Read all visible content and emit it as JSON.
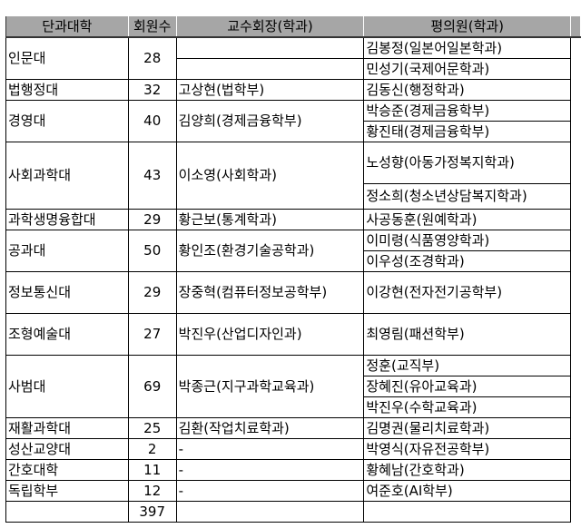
{
  "headers": [
    "단과대학",
    "회원수",
    "교수회장(학과)",
    "평의원(학과)",
    ""
  ],
  "colleges": [
    {
      "name": "인문대",
      "members": "28",
      "president": [
        "",
        ""
      ],
      "reps": [
        "김봉정(일본어일본학과)",
        "민성기(국제어문학과)"
      ]
    },
    {
      "name": "법행정대",
      "members": "32",
      "president": "고상현(법학부)",
      "reps": [
        "김동신(행정학과)"
      ]
    },
    {
      "name": "경영대",
      "members": "40",
      "president": "김양희(경제금융학부)",
      "reps": [
        "박승준(경제금융학부)",
        "황진태(경제금융학부)"
      ]
    },
    {
      "name": "사회과학대",
      "members": "43",
      "president": "이소영(사회학과)",
      "reps": [
        "노성향(아동가정복지학과)",
        "정소희(청소년상담복지학과)"
      ]
    },
    {
      "name": "과학생명융합대",
      "members": "29",
      "president": "황근보(통계학과)",
      "reps": [
        "사공동훈(원예학과)"
      ]
    },
    {
      "name": "공과대",
      "members": "50",
      "president": "황인조(환경기술공학과)",
      "reps": [
        "이미령(식품영양학과)",
        "이우성(조경학과)"
      ]
    },
    {
      "name": "정보통신대",
      "members": "29",
      "president": "장중혁(컴퓨터정보공학부)",
      "reps": [
        "이강현(전자전기공학부)"
      ]
    },
    {
      "name": "조형예술대",
      "members": "27",
      "president": "박진우(산업디자인과)",
      "reps": [
        "최영림(패션학부)"
      ]
    },
    {
      "name": "사범대",
      "members": "69",
      "president": "박종근(지구과학교육과)",
      "reps": [
        "정훈(교직부)",
        "장혜진(유아교육과)",
        "박진우(수학교육과)"
      ]
    },
    {
      "name": "재활과학대",
      "members": "25",
      "president": "김환(작업치료학과)",
      "reps": [
        "김명권(물리치료학과)"
      ]
    },
    {
      "name": "성산교양대",
      "members": "2",
      "president": "-",
      "reps": [
        "박영식(자유전공학부)"
      ]
    },
    {
      "name": "간호대학",
      "members": "11",
      "president": "-",
      "reps": [
        "황혜남(간호학과)"
      ]
    },
    {
      "name": "독립학부",
      "members": "12",
      "president": "-",
      "reps": [
        "여준호(AI학부)"
      ]
    }
  ],
  "total": {
    "label": "",
    "members": "397"
  },
  "colors": {
    "header_bg": "#a6a6a6",
    "border": "#000000"
  }
}
